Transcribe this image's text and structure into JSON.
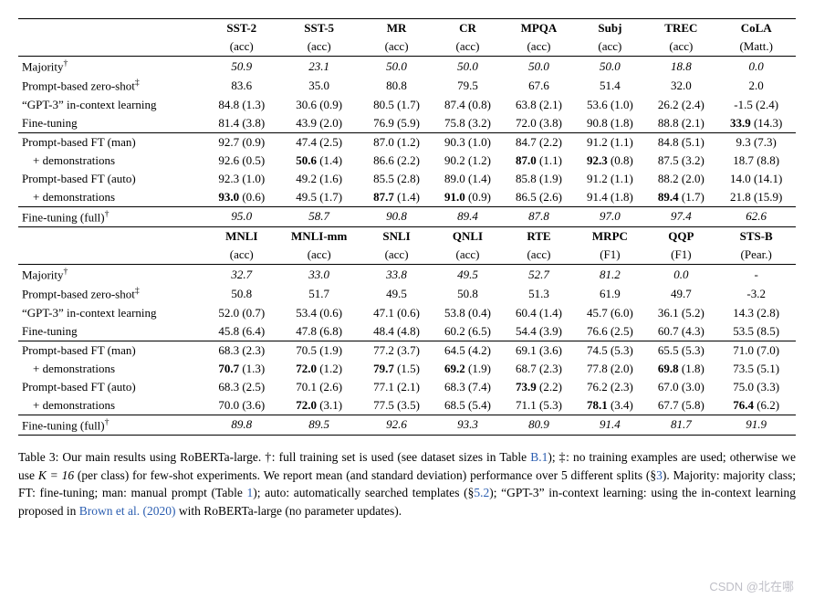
{
  "table1": {
    "headers": [
      {
        "name": "SST-2",
        "metric": "(acc)"
      },
      {
        "name": "SST-5",
        "metric": "(acc)"
      },
      {
        "name": "MR",
        "metric": "(acc)"
      },
      {
        "name": "CR",
        "metric": "(acc)"
      },
      {
        "name": "MPQA",
        "metric": "(acc)"
      },
      {
        "name": "Subj",
        "metric": "(acc)"
      },
      {
        "name": "TREC",
        "metric": "(acc)"
      },
      {
        "name": "CoLA",
        "metric": "(Matt.)"
      }
    ],
    "rows": [
      {
        "label": "Majority",
        "dagger": true,
        "italic": true,
        "cells": [
          "50.9",
          "23.1",
          "50.0",
          "50.0",
          "50.0",
          "50.0",
          "18.8",
          "0.0"
        ]
      },
      {
        "label": "Prompt-based zero-shot",
        "ddagger": true,
        "cells": [
          "83.6",
          "35.0",
          "80.8",
          "79.5",
          "67.6",
          "51.4",
          "32.0",
          "2.0"
        ]
      },
      {
        "label": "“GPT-3” in-context learning",
        "cells": [
          "84.8 (1.3)",
          "30.6 (0.9)",
          "80.5 (1.7)",
          "87.4 (0.8)",
          "63.8 (2.1)",
          "53.6 (1.0)",
          "26.2 (2.4)",
          "-1.5 (2.4)"
        ]
      },
      {
        "label": "Fine-tuning",
        "cells": [
          "81.4 (3.8)",
          "43.9 (2.0)",
          "76.9 (5.9)",
          "75.8 (3.2)",
          "72.0 (3.8)",
          "90.8 (1.8)",
          "88.8 (2.1)",
          "33.9 (14.3)"
        ],
        "bold": [
          false,
          false,
          false,
          false,
          false,
          false,
          false,
          true
        ]
      },
      {
        "divider": true
      },
      {
        "label": "Prompt-based FT (man)",
        "cells": [
          "92.7 (0.9)",
          "47.4 (2.5)",
          "87.0 (1.2)",
          "90.3 (1.0)",
          "84.7 (2.2)",
          "91.2 (1.1)",
          "84.8 (5.1)",
          "9.3 (7.3)"
        ]
      },
      {
        "label": "+ demonstrations",
        "indent": true,
        "cells": [
          "92.6 (0.5)",
          "50.6 (1.4)",
          "86.6 (2.2)",
          "90.2 (1.2)",
          "87.0 (1.1)",
          "92.3 (0.8)",
          "87.5 (3.2)",
          "18.7 (8.8)"
        ],
        "bold": [
          false,
          true,
          false,
          false,
          true,
          true,
          false,
          false
        ]
      },
      {
        "label": "Prompt-based FT (auto)",
        "cells": [
          "92.3 (1.0)",
          "49.2 (1.6)",
          "85.5 (2.8)",
          "89.0 (1.4)",
          "85.8 (1.9)",
          "91.2 (1.1)",
          "88.2 (2.0)",
          "14.0 (14.1)"
        ]
      },
      {
        "label": "+ demonstrations",
        "indent": true,
        "cells": [
          "93.0 (0.6)",
          "49.5 (1.7)",
          "87.7 (1.4)",
          "91.0 (0.9)",
          "86.5 (2.6)",
          "91.4 (1.8)",
          "89.4 (1.7)",
          "21.8 (15.9)"
        ],
        "bold": [
          true,
          false,
          true,
          true,
          false,
          false,
          true,
          false
        ]
      },
      {
        "divider": true
      },
      {
        "label": "Fine-tuning (full)",
        "dagger": true,
        "italic": true,
        "cells": [
          "95.0",
          "58.7",
          "90.8",
          "89.4",
          "87.8",
          "97.0",
          "97.4",
          "62.6"
        ]
      }
    ]
  },
  "table2": {
    "headers": [
      {
        "name": "MNLI",
        "metric": "(acc)"
      },
      {
        "name": "MNLI-mm",
        "metric": "(acc)"
      },
      {
        "name": "SNLI",
        "metric": "(acc)"
      },
      {
        "name": "QNLI",
        "metric": "(acc)"
      },
      {
        "name": "RTE",
        "metric": "(acc)"
      },
      {
        "name": "MRPC",
        "metric": "(F1)"
      },
      {
        "name": "QQP",
        "metric": "(F1)"
      },
      {
        "name": "STS-B",
        "metric": "(Pear.)"
      }
    ],
    "rows": [
      {
        "label": "Majority",
        "dagger": true,
        "italic": true,
        "cells": [
          "32.7",
          "33.0",
          "33.8",
          "49.5",
          "52.7",
          "81.2",
          "0.0",
          "-"
        ]
      },
      {
        "label": "Prompt-based zero-shot",
        "ddagger": true,
        "cells": [
          "50.8",
          "51.7",
          "49.5",
          "50.8",
          "51.3",
          "61.9",
          "49.7",
          "-3.2"
        ]
      },
      {
        "label": "“GPT-3” in-context learning",
        "cells": [
          "52.0 (0.7)",
          "53.4 (0.6)",
          "47.1 (0.6)",
          "53.8 (0.4)",
          "60.4 (1.4)",
          "45.7 (6.0)",
          "36.1 (5.2)",
          "14.3 (2.8)"
        ]
      },
      {
        "label": "Fine-tuning",
        "cells": [
          "45.8 (6.4)",
          "47.8 (6.8)",
          "48.4 (4.8)",
          "60.2 (6.5)",
          "54.4 (3.9)",
          "76.6 (2.5)",
          "60.7 (4.3)",
          "53.5 (8.5)"
        ]
      },
      {
        "divider": true
      },
      {
        "label": "Prompt-based FT (man)",
        "cells": [
          "68.3 (2.3)",
          "70.5 (1.9)",
          "77.2 (3.7)",
          "64.5 (4.2)",
          "69.1 (3.6)",
          "74.5 (5.3)",
          "65.5 (5.3)",
          "71.0 (7.0)"
        ]
      },
      {
        "label": "+ demonstrations",
        "indent": true,
        "cells": [
          "70.7 (1.3)",
          "72.0 (1.2)",
          "79.7 (1.5)",
          "69.2 (1.9)",
          "68.7 (2.3)",
          "77.8 (2.0)",
          "69.8 (1.8)",
          "73.5 (5.1)"
        ],
        "bold": [
          true,
          true,
          true,
          true,
          false,
          false,
          true,
          false
        ]
      },
      {
        "label": "Prompt-based FT (auto)",
        "cells": [
          "68.3 (2.5)",
          "70.1 (2.6)",
          "77.1 (2.1)",
          "68.3 (7.4)",
          "73.9 (2.2)",
          "76.2 (2.3)",
          "67.0 (3.0)",
          "75.0 (3.3)"
        ],
        "bold": [
          false,
          false,
          false,
          false,
          true,
          false,
          false,
          false
        ]
      },
      {
        "label": "+ demonstrations",
        "indent": true,
        "cells": [
          "70.0 (3.6)",
          "72.0 (3.1)",
          "77.5 (3.5)",
          "68.5 (5.4)",
          "71.1 (5.3)",
          "78.1 (3.4)",
          "67.7 (5.8)",
          "76.4 (6.2)"
        ],
        "bold": [
          false,
          true,
          false,
          false,
          false,
          true,
          false,
          true
        ]
      },
      {
        "divider": true
      },
      {
        "label": "Fine-tuning (full)",
        "dagger": true,
        "italic": true,
        "cells": [
          "89.8",
          "89.5",
          "92.6",
          "93.3",
          "80.9",
          "91.4",
          "81.7",
          "91.9"
        ]
      }
    ]
  },
  "caption": {
    "lead": "Table 3: Our main results using RoBERTa-large. ",
    "t1": "†: full training set is used (see dataset sizes in Table ",
    "tref1": "B.1",
    "t2": "); ‡: no training examples are used; otherwise we use ",
    "k": "K = 16",
    "t3": " (per class) for few-shot experiments. We report mean (and standard deviation) performance over 5 different splits (§",
    "sref1": "3",
    "t4": "). Majority: majority class; FT: fine-tuning; man: manual prompt (Table ",
    "tref2": "1",
    "t5": "); auto: automatically searched templates (§",
    "sref2": "5.2",
    "t6": "); “GPT-3” in-context learning: using the in-context learning proposed in ",
    "cite": "Brown et al.",
    "cite_year": "(2020)",
    "t7": " with RoBERTa-large (no parameter updates)."
  },
  "watermark": "CSDN @北在哪"
}
